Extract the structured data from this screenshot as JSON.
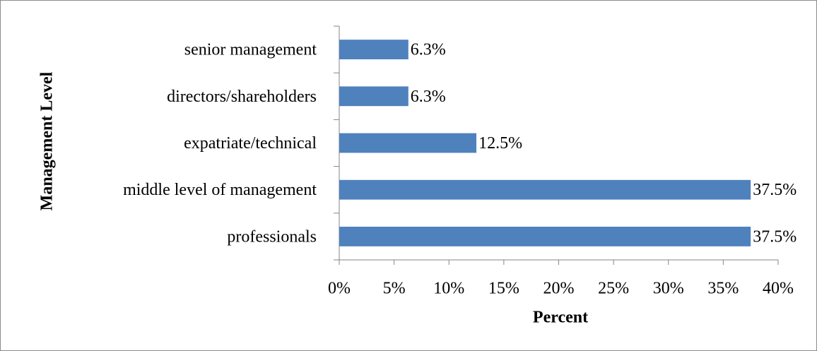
{
  "chart_data": {
    "type": "hbar",
    "y_axis_label": "Management Level",
    "x_axis_label": "Percent",
    "categories": [
      "senior management",
      "directors/shareholders",
      "expatriate/technical",
      "middle level of management",
      "professionals"
    ],
    "values": [
      6.3,
      6.3,
      12.5,
      37.5,
      37.5
    ],
    "value_labels": [
      "6.3%",
      "6.3%",
      "12.5%",
      "37.5%",
      "37.5%"
    ],
    "color": "#4f81bd",
    "xlim": [
      0,
      40
    ],
    "xticks": [
      {
        "value": 0,
        "label": "0%"
      },
      {
        "value": 5,
        "label": "5%"
      },
      {
        "value": 10,
        "label": "10%"
      },
      {
        "value": 15,
        "label": "15%"
      },
      {
        "value": 20,
        "label": "20%"
      },
      {
        "value": 25,
        "label": "25%"
      },
      {
        "value": 30,
        "label": "30%"
      },
      {
        "value": 35,
        "label": "35%"
      },
      {
        "value": 40,
        "label": "40%"
      }
    ]
  }
}
